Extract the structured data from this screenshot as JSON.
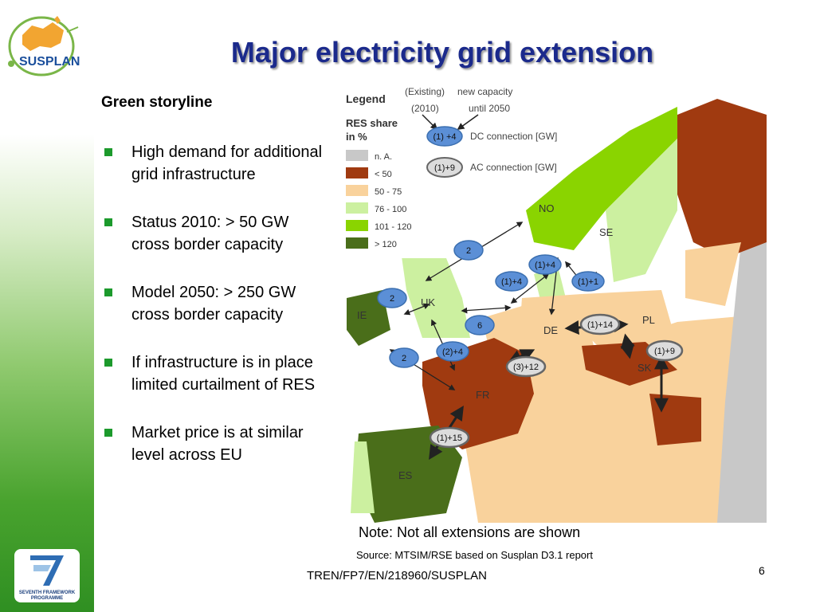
{
  "slide": {
    "title": "Major electricity grid extension",
    "storyline": "Green storyline",
    "bullets": [
      "High demand for additional grid infrastructure",
      "Status 2010: > 50 GW cross border capacity",
      "Model 2050: > 250 GW cross border capacity",
      "If infrastructure is in place limited curtailment of RES",
      "Market price is at similar level across EU"
    ],
    "note": "Note: Not all extensions are shown",
    "source": "Source: MTSIM/RSE based on Susplan D3.1 report",
    "footer": "TREN/FP7/EN/218960/SUSPLAN",
    "page_number": "6"
  },
  "logos": {
    "susplan": "SUSPLAN",
    "fp7_line1": "SEVENTH FRAMEWORK",
    "fp7_line2": "PROGRAMME"
  },
  "map": {
    "legend": {
      "title": "Legend",
      "res_share_title_1": "RES share",
      "res_share_title_2": "in %",
      "existing_label": "(Existing)",
      "existing_year": "(2010)",
      "new_label": "new capacity",
      "new_until": "until 2050",
      "dc_example": "(1) +4",
      "dc_label": "DC connection [GW]",
      "ac_example": "(1)+9",
      "ac_label": "AC connection [GW]",
      "classes": [
        {
          "label": "n. A.",
          "color": "#c8c8c8"
        },
        {
          "label": "< 50",
          "color": "#a03a10"
        },
        {
          "label": "50 - 75",
          "color": "#f9d29c"
        },
        {
          "label": "76 - 100",
          "color": "#ccf0a0"
        },
        {
          "label": "101 - 120",
          "color": "#8ad400"
        },
        {
          "label": "> 120",
          "color": "#4a6e1a"
        }
      ]
    },
    "countries": {
      "NO": "NO",
      "SE": "SE",
      "UK": "UK",
      "IE": "IE",
      "DE": "DE",
      "PL": "PL",
      "SK": "SK",
      "FR": "FR",
      "ES": "ES"
    },
    "dc_connections": [
      "2",
      "2",
      "6",
      "2",
      "(1)+4",
      "(1)+4",
      "(1)+1",
      "(2)+4"
    ],
    "ac_connections": [
      "(1)+14",
      "(1)+9",
      "(3)+12",
      "(1)+15"
    ],
    "colors": {
      "dc_fill": "#5b8fd6",
      "ac_fill": "#dcdcdc",
      "sea": "#ffffff"
    }
  }
}
